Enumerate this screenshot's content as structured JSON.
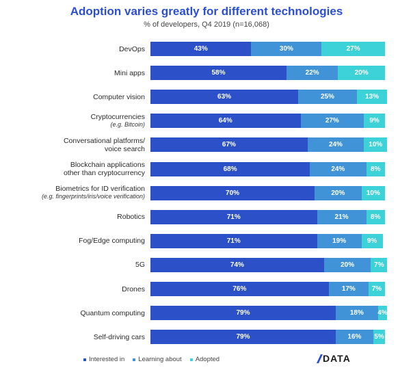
{
  "title": "Adoption varies greatly for different technologies",
  "subtitle": "% of developers, Q4 2019 (n=16,068)",
  "colors": {
    "interested": "#2b50c8",
    "learning": "#3f93d6",
    "adopted": "#3cd2d8"
  },
  "legend": [
    {
      "key": "interested",
      "label": "Interested in"
    },
    {
      "key": "learning",
      "label": "Learning about"
    },
    {
      "key": "adopted",
      "label": "Adopted"
    }
  ],
  "logo_text": "DATA",
  "chart_data": {
    "type": "bar",
    "stacked": true,
    "orientation": "horizontal",
    "title": "Adoption varies greatly for different technologies",
    "subtitle": "% of developers, Q4 2019 (n=16,068)",
    "xlim": [
      0,
      100
    ],
    "grid": false,
    "legend_position": "bottom-left",
    "categories": [
      {
        "label": "DevOps",
        "sub": ""
      },
      {
        "label": "Mini apps",
        "sub": ""
      },
      {
        "label": "Computer vision",
        "sub": ""
      },
      {
        "label": "Cryptocurrencies",
        "sub": "(e.g. Bitcoin)"
      },
      {
        "label": "Conversational platforms/\nvoice search",
        "sub": ""
      },
      {
        "label": "Blockchain applications\nother than cryptocurrency",
        "sub": ""
      },
      {
        "label": "Biometrics for ID verification",
        "sub": "(e.g. fingerprints/iris/voice verification)"
      },
      {
        "label": "Robotics",
        "sub": ""
      },
      {
        "label": "Fog/Edge computing",
        "sub": ""
      },
      {
        "label": "5G",
        "sub": ""
      },
      {
        "label": "Drones",
        "sub": ""
      },
      {
        "label": "Quantum computing",
        "sub": ""
      },
      {
        "label": "Self-driving cars",
        "sub": ""
      }
    ],
    "series": [
      {
        "name": "Interested in",
        "key": "interested",
        "values": [
          43,
          58,
          63,
          64,
          67,
          68,
          70,
          71,
          71,
          74,
          76,
          79,
          79
        ]
      },
      {
        "name": "Learning about",
        "key": "learning",
        "values": [
          30,
          22,
          25,
          27,
          24,
          24,
          20,
          21,
          19,
          20,
          17,
          18,
          16
        ]
      },
      {
        "name": "Adopted",
        "key": "adopted",
        "values": [
          27,
          20,
          13,
          9,
          10,
          8,
          10,
          8,
          9,
          7,
          7,
          4,
          5
        ]
      }
    ]
  }
}
